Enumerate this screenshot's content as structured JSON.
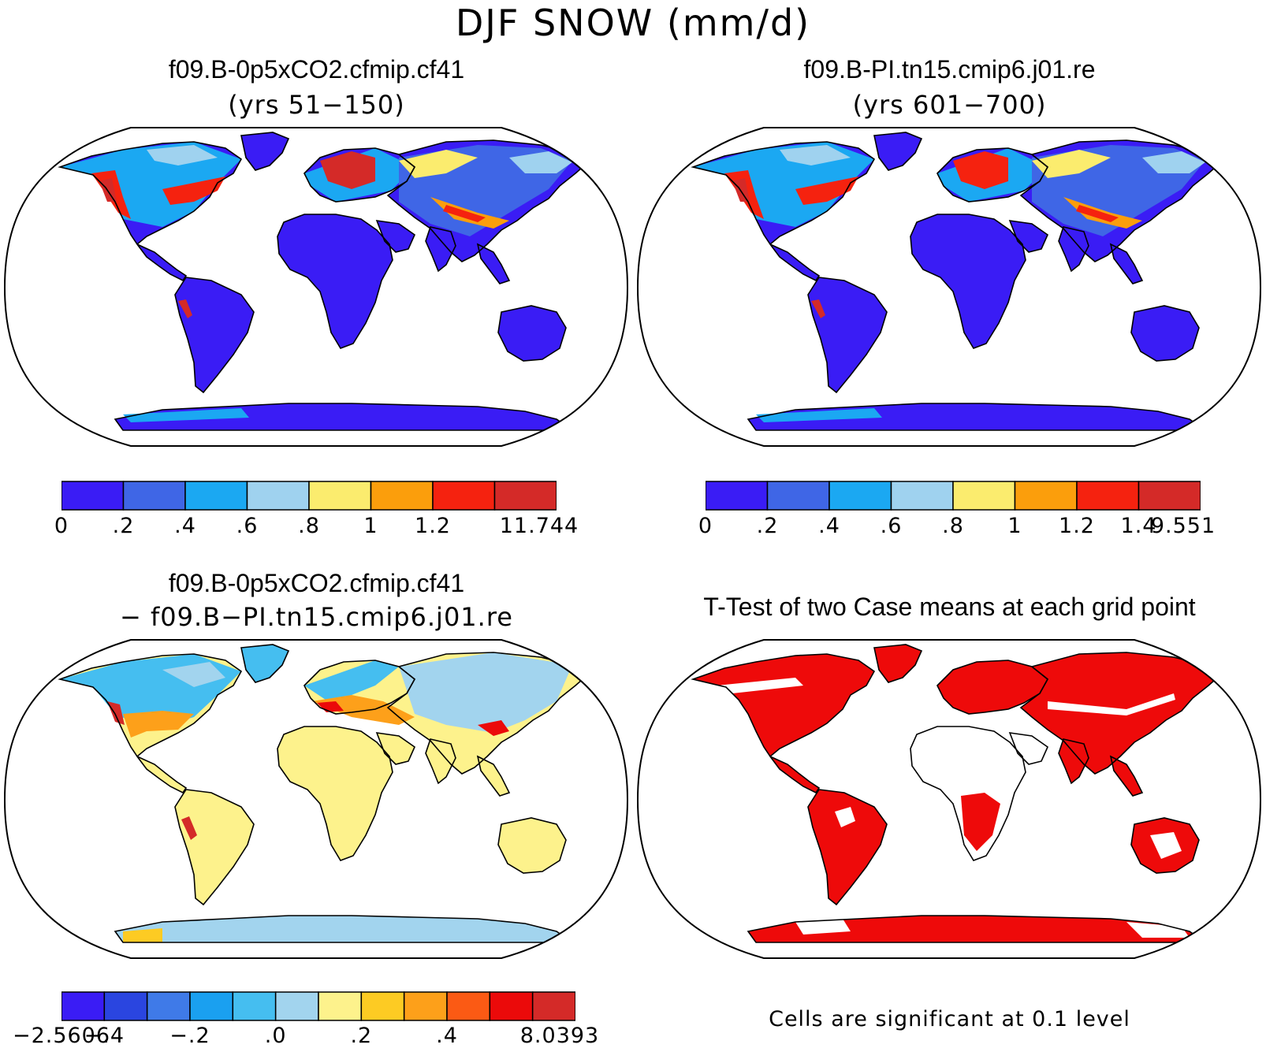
{
  "title": "DJF SNOW (mm/d)",
  "panels": [
    {
      "id": "case1",
      "title": "f09.B-0p5xCO2.cfmip.cf41",
      "subtitle": "(yrs 51−150)",
      "colorbar": {
        "colors": [
          "#3a1cf5",
          "#3f66e6",
          "#1ba8f2",
          "#9fd2ef",
          "#fbec6e",
          "#fb9e0c",
          "#f5220f",
          "#d42a28"
        ],
        "labels": [
          "0",
          ".2",
          ".4",
          ".6",
          ".8",
          "1",
          "1.2",
          "",
          "11.744"
        ]
      }
    },
    {
      "id": "case2",
      "title": "f09.B-PI.tn15.cmip6.j01.re",
      "subtitle": "(yrs 601−700)",
      "colorbar": {
        "colors": [
          "#3a1cf5",
          "#3f66e6",
          "#1ba8f2",
          "#9fd2ef",
          "#fbec6e",
          "#fb9e0c",
          "#f5220f",
          "#d42a28"
        ],
        "labels": [
          "0",
          ".2",
          ".4",
          ".6",
          ".8",
          "1",
          "1.2",
          "1.4",
          "9.551"
        ]
      }
    },
    {
      "id": "diff",
      "title": "f09.B-0p5xCO2.cfmip.cf41",
      "subtitle": "− f09.B−PI.tn15.cmip6.j01.re",
      "colorbar": {
        "colors": [
          "#3a1cf5",
          "#2a45e0",
          "#3f7ae8",
          "#1aa0f0",
          "#45bef0",
          "#a2d4ee",
          "#fdf28c",
          "#fdcb23",
          "#fda01a",
          "#fb5a14",
          "#eb0a0a",
          "#d42a28"
        ],
        "labels": [
          "−2.5606",
          "−.4",
          "",
          "−.2",
          "",
          ".0",
          "",
          ".2",
          "",
          ".4",
          "",
          "8.0393"
        ]
      }
    },
    {
      "id": "ttest",
      "title": "T-Test of two Case means at each grid point",
      "note": "Cells are significant at 0.1 level"
    }
  ],
  "colors": {
    "ocean": "#ffffff",
    "significant": "#ee0a0a",
    "outline": "#000000"
  }
}
